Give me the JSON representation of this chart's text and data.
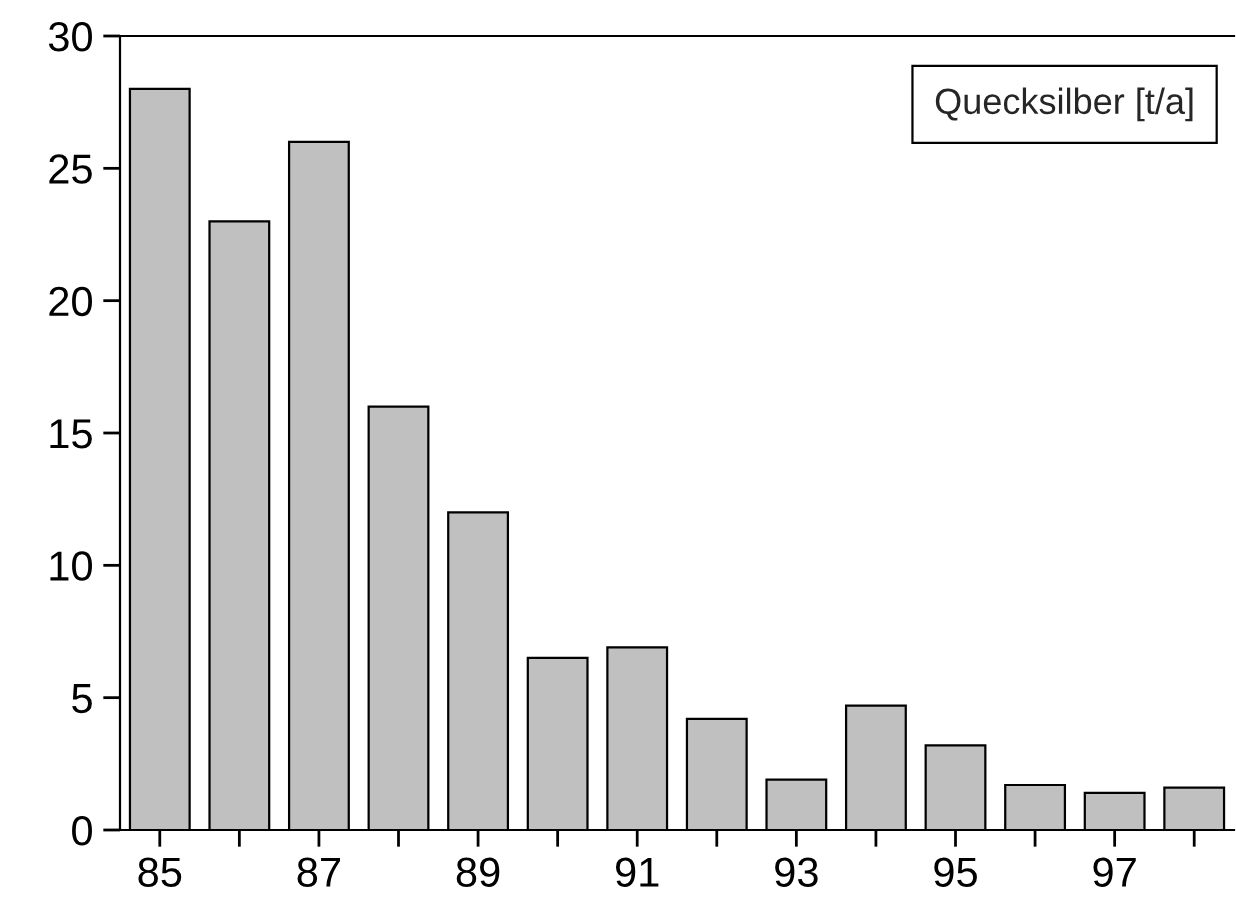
{
  "chart_data": {
    "type": "bar",
    "title": "Quecksilber [t/a]",
    "categories": [
      "85",
      null,
      "87",
      null,
      "89",
      null,
      "91",
      null,
      "93",
      null,
      "95",
      null,
      "97",
      null
    ],
    "values": [
      28,
      23,
      26,
      16,
      12,
      6.5,
      6.9,
      4.2,
      1.9,
      4.7,
      3.2,
      1.7,
      1.4,
      1.6
    ],
    "color": "#c0c0c0",
    "ylim": [
      0,
      30
    ],
    "yticks": [
      0,
      5,
      10,
      15,
      20,
      25,
      30
    ],
    "grid": false,
    "legend": false
  }
}
